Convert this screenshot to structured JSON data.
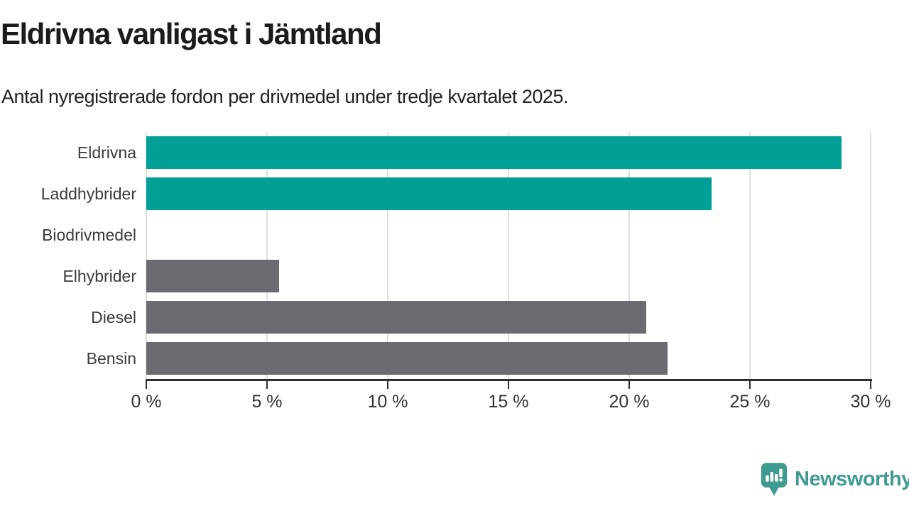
{
  "header": {
    "title": "Eldrivna vanligast i Jämtland",
    "subtitle": "Antal nyregistrerade fordon per drivmedel under tredje kvartalet 2025."
  },
  "chart_data": {
    "type": "bar",
    "orientation": "horizontal",
    "title": "Eldrivna vanligast i Jämtland",
    "subtitle": "Antal nyregistrerade fordon per drivmedel under tredje kvartalet 2025.",
    "categories": [
      "Eldrivna",
      "Laddhybrider",
      "Biodrivmedel",
      "Elhybrider",
      "Diesel",
      "Bensin"
    ],
    "values": [
      28.8,
      23.4,
      0,
      5.5,
      20.7,
      21.6
    ],
    "unit": "%",
    "xlim": [
      0,
      30
    ],
    "x_ticks": [
      0,
      5,
      10,
      15,
      20,
      25,
      30
    ],
    "x_tick_labels": [
      "0 %",
      "5 %",
      "10 %",
      "15 %",
      "20 %",
      "25 %",
      "30 %"
    ],
    "grid": "vertical-gridlines",
    "legend": "none",
    "bar_colors": [
      "#00a096",
      "#00a096",
      "#6a6a70",
      "#6a6a70",
      "#6a6a70",
      "#6a6a70"
    ],
    "highlight_color": "#00a096",
    "default_color": "#6a6a70"
  },
  "footer": {
    "brand": "Newsworthy",
    "logo_icon": "newsworthy-speech-bubble-bar-chart-icon",
    "brand_color": "#3f9a91"
  },
  "colors": {
    "background": "#ffffff",
    "title_text": "#1b1b1a",
    "label_text": "#3a3a3a",
    "axis_line": "#2e2e2e",
    "gridline": "#dfdfdf"
  }
}
